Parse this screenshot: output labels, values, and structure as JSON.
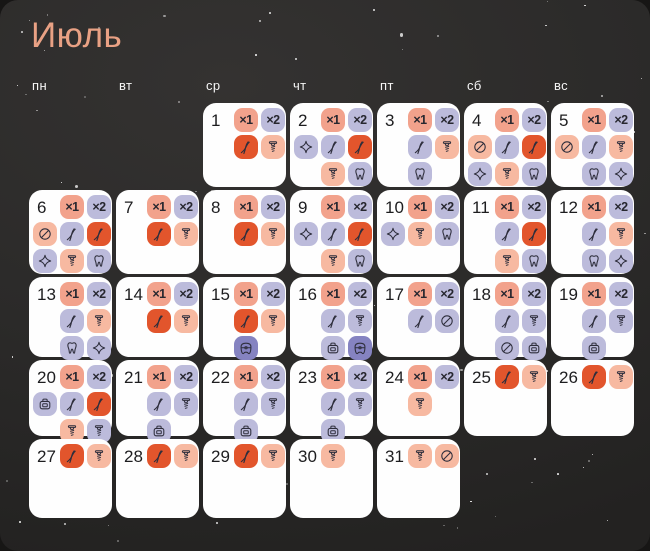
{
  "title": "Июль",
  "weekdays": [
    "пн",
    "вт",
    "ср",
    "чт",
    "пт",
    "сб",
    "вс"
  ],
  "labels": {
    "x1": "×1",
    "x2": "×2"
  },
  "colors": {
    "background": "#2b2a29",
    "card": "#fefefe",
    "title": "#e9a184",
    "weekday": "#f5f5f5",
    "day_number": "#1d1d1f",
    "icon_stroke": "#2e2e3c",
    "salmon": "#f2a28c",
    "peach": "#f7b9a1",
    "lavender": "#bcbbdb",
    "red": "#e2552c",
    "purple": "#8583c1"
  },
  "icon_names": [
    "x1-badge",
    "x2-badge",
    "forceps-icon",
    "implant-icon",
    "tooth-icon",
    "sparkle-icon",
    "prohibited-icon",
    "braces-icon",
    "tray-icon"
  ],
  "days": [
    {
      "day": 1,
      "rows": [
        [
          {
            "i": "x1",
            "c": "salmon"
          },
          {
            "i": "x2",
            "c": "lavender"
          }
        ],
        [
          {
            "i": "forceps",
            "c": "red"
          },
          {
            "i": "implant",
            "c": "peach"
          }
        ]
      ]
    },
    {
      "day": 2,
      "rows": [
        [
          {
            "i": "x1",
            "c": "salmon"
          },
          {
            "i": "x2",
            "c": "lavender"
          }
        ],
        [
          {
            "i": "sparkle",
            "c": "lavender"
          },
          {
            "i": "forceps",
            "c": "lavender"
          },
          {
            "i": "forceps",
            "c": "red"
          }
        ],
        [
          {
            "i": "implant",
            "c": "peach"
          },
          {
            "i": "tooth",
            "c": "lavender"
          }
        ]
      ]
    },
    {
      "day": 3,
      "rows": [
        [
          {
            "i": "x1",
            "c": "salmon"
          },
          {
            "i": "x2",
            "c": "lavender"
          }
        ],
        [
          {
            "i": "forceps",
            "c": "lavender"
          },
          {
            "i": "implant",
            "c": "peach"
          }
        ],
        [
          {
            "i": "tooth",
            "c": "lavender"
          }
        ]
      ]
    },
    {
      "day": 4,
      "rows": [
        [
          {
            "i": "x1",
            "c": "salmon"
          },
          {
            "i": "x2",
            "c": "lavender"
          }
        ],
        [
          {
            "i": "prohibited",
            "c": "peach"
          },
          {
            "i": "forceps",
            "c": "lavender"
          },
          {
            "i": "forceps",
            "c": "red"
          }
        ],
        [
          {
            "i": "sparkle",
            "c": "lavender"
          },
          {
            "i": "implant",
            "c": "peach"
          },
          {
            "i": "tooth",
            "c": "lavender"
          }
        ]
      ]
    },
    {
      "day": 5,
      "rows": [
        [
          {
            "i": "x1",
            "c": "salmon"
          },
          {
            "i": "x2",
            "c": "lavender"
          }
        ],
        [
          {
            "i": "prohibited",
            "c": "peach"
          },
          {
            "i": "forceps",
            "c": "lavender"
          },
          {
            "i": "implant",
            "c": "peach"
          }
        ],
        [
          {
            "i": "tooth",
            "c": "lavender"
          },
          {
            "i": "sparkle",
            "c": "lavender"
          }
        ]
      ]
    },
    {
      "day": 6,
      "rows": [
        [
          {
            "i": "x1",
            "c": "salmon"
          },
          {
            "i": "x2",
            "c": "lavender"
          }
        ],
        [
          {
            "i": "prohibited",
            "c": "peach"
          },
          {
            "i": "forceps",
            "c": "lavender"
          },
          {
            "i": "forceps",
            "c": "red"
          }
        ],
        [
          {
            "i": "sparkle",
            "c": "lavender"
          },
          {
            "i": "implant",
            "c": "peach"
          },
          {
            "i": "tooth",
            "c": "lavender"
          }
        ]
      ]
    },
    {
      "day": 7,
      "rows": [
        [
          {
            "i": "x1",
            "c": "salmon"
          },
          {
            "i": "x2",
            "c": "lavender"
          }
        ],
        [
          {
            "i": "forceps",
            "c": "red"
          },
          {
            "i": "implant",
            "c": "peach"
          }
        ]
      ]
    },
    {
      "day": 8,
      "rows": [
        [
          {
            "i": "x1",
            "c": "salmon"
          },
          {
            "i": "x2",
            "c": "lavender"
          }
        ],
        [
          {
            "i": "forceps",
            "c": "red"
          },
          {
            "i": "implant",
            "c": "peach"
          }
        ]
      ]
    },
    {
      "day": 9,
      "rows": [
        [
          {
            "i": "x1",
            "c": "salmon"
          },
          {
            "i": "x2",
            "c": "lavender"
          }
        ],
        [
          {
            "i": "sparkle",
            "c": "lavender"
          },
          {
            "i": "forceps",
            "c": "lavender"
          },
          {
            "i": "forceps",
            "c": "red"
          }
        ],
        [
          {
            "i": "implant",
            "c": "peach"
          },
          {
            "i": "tooth",
            "c": "lavender"
          }
        ]
      ]
    },
    {
      "day": 10,
      "rows": [
        [
          {
            "i": "x1",
            "c": "salmon"
          },
          {
            "i": "x2",
            "c": "lavender"
          }
        ],
        [
          {
            "i": "sparkle",
            "c": "lavender"
          },
          {
            "i": "implant",
            "c": "peach"
          },
          {
            "i": "tooth",
            "c": "lavender"
          }
        ]
      ]
    },
    {
      "day": 11,
      "rows": [
        [
          {
            "i": "x1",
            "c": "salmon"
          },
          {
            "i": "x2",
            "c": "lavender"
          }
        ],
        [
          {
            "i": "forceps",
            "c": "lavender"
          },
          {
            "i": "forceps",
            "c": "red"
          }
        ],
        [
          {
            "i": "implant",
            "c": "peach"
          },
          {
            "i": "tooth",
            "c": "lavender"
          }
        ]
      ]
    },
    {
      "day": 12,
      "rows": [
        [
          {
            "i": "x1",
            "c": "salmon"
          },
          {
            "i": "x2",
            "c": "lavender"
          }
        ],
        [
          {
            "i": "forceps",
            "c": "lavender"
          },
          {
            "i": "implant",
            "c": "peach"
          }
        ],
        [
          {
            "i": "tooth",
            "c": "lavender"
          },
          {
            "i": "sparkle",
            "c": "lavender"
          }
        ]
      ]
    },
    {
      "day": 13,
      "rows": [
        [
          {
            "i": "x1",
            "c": "salmon"
          },
          {
            "i": "x2",
            "c": "lavender"
          }
        ],
        [
          {
            "i": "forceps",
            "c": "lavender"
          },
          {
            "i": "implant",
            "c": "peach"
          }
        ],
        [
          {
            "i": "tooth",
            "c": "lavender"
          },
          {
            "i": "sparkle",
            "c": "lavender"
          }
        ]
      ]
    },
    {
      "day": 14,
      "rows": [
        [
          {
            "i": "x1",
            "c": "salmon"
          },
          {
            "i": "x2",
            "c": "lavender"
          }
        ],
        [
          {
            "i": "forceps",
            "c": "red"
          },
          {
            "i": "implant",
            "c": "peach"
          }
        ]
      ]
    },
    {
      "day": 15,
      "rows": [
        [
          {
            "i": "x1",
            "c": "salmon"
          },
          {
            "i": "x2",
            "c": "lavender"
          }
        ],
        [
          {
            "i": "forceps",
            "c": "red"
          },
          {
            "i": "implant",
            "c": "peach"
          }
        ],
        [
          {
            "i": "braces",
            "c": "purple"
          }
        ]
      ]
    },
    {
      "day": 16,
      "rows": [
        [
          {
            "i": "x1",
            "c": "salmon"
          },
          {
            "i": "x2",
            "c": "lavender"
          }
        ],
        [
          {
            "i": "forceps",
            "c": "lavender"
          },
          {
            "i": "implant",
            "c": "lavender"
          }
        ],
        [
          {
            "i": "tray",
            "c": "lavender"
          },
          {
            "i": "braces",
            "c": "purple"
          }
        ]
      ]
    },
    {
      "day": 17,
      "rows": [
        [
          {
            "i": "x1",
            "c": "salmon"
          },
          {
            "i": "x2",
            "c": "lavender"
          }
        ],
        [
          {
            "i": "forceps",
            "c": "lavender"
          },
          {
            "i": "prohibited",
            "c": "lavender"
          }
        ]
      ]
    },
    {
      "day": 18,
      "rows": [
        [
          {
            "i": "x1",
            "c": "salmon"
          },
          {
            "i": "x2",
            "c": "lavender"
          }
        ],
        [
          {
            "i": "forceps",
            "c": "lavender"
          },
          {
            "i": "implant",
            "c": "lavender"
          }
        ],
        [
          {
            "i": "prohibited",
            "c": "lavender"
          },
          {
            "i": "tray",
            "c": "lavender"
          }
        ]
      ]
    },
    {
      "day": 19,
      "rows": [
        [
          {
            "i": "x1",
            "c": "salmon"
          },
          {
            "i": "x2",
            "c": "lavender"
          }
        ],
        [
          {
            "i": "forceps",
            "c": "lavender"
          },
          {
            "i": "implant",
            "c": "lavender"
          }
        ],
        [
          {
            "i": "tray",
            "c": "lavender"
          }
        ]
      ]
    },
    {
      "day": 20,
      "rows": [
        [
          {
            "i": "x1",
            "c": "salmon"
          },
          {
            "i": "x2",
            "c": "lavender"
          }
        ],
        [
          {
            "i": "tray",
            "c": "lavender"
          },
          {
            "i": "forceps",
            "c": "lavender"
          },
          {
            "i": "forceps",
            "c": "red"
          }
        ],
        [
          {
            "i": "implant",
            "c": "peach"
          },
          {
            "i": "implant",
            "c": "lavender"
          }
        ]
      ]
    },
    {
      "day": 21,
      "rows": [
        [
          {
            "i": "x1",
            "c": "salmon"
          },
          {
            "i": "x2",
            "c": "lavender"
          }
        ],
        [
          {
            "i": "forceps",
            "c": "lavender"
          },
          {
            "i": "implant",
            "c": "lavender"
          }
        ],
        [
          {
            "i": "tray",
            "c": "lavender"
          }
        ]
      ]
    },
    {
      "day": 22,
      "rows": [
        [
          {
            "i": "x1",
            "c": "salmon"
          },
          {
            "i": "x2",
            "c": "lavender"
          }
        ],
        [
          {
            "i": "forceps",
            "c": "lavender"
          },
          {
            "i": "implant",
            "c": "lavender"
          }
        ],
        [
          {
            "i": "tray",
            "c": "lavender"
          }
        ]
      ]
    },
    {
      "day": 23,
      "rows": [
        [
          {
            "i": "x1",
            "c": "salmon"
          },
          {
            "i": "x2",
            "c": "lavender"
          }
        ],
        [
          {
            "i": "forceps",
            "c": "lavender"
          },
          {
            "i": "implant",
            "c": "lavender"
          }
        ],
        [
          {
            "i": "tray",
            "c": "lavender"
          }
        ]
      ]
    },
    {
      "day": 24,
      "rows": [
        [
          {
            "i": "x1",
            "c": "salmon"
          },
          {
            "i": "x2",
            "c": "lavender"
          }
        ],
        [
          {
            "i": "implant",
            "c": "peach"
          }
        ]
      ]
    },
    {
      "day": 25,
      "rows": [
        [
          {
            "i": "forceps",
            "c": "red"
          },
          {
            "i": "implant",
            "c": "peach"
          }
        ]
      ]
    },
    {
      "day": 26,
      "rows": [
        [
          {
            "i": "forceps",
            "c": "red"
          },
          {
            "i": "implant",
            "c": "peach"
          }
        ]
      ]
    },
    {
      "day": 27,
      "rows": [
        [
          {
            "i": "forceps",
            "c": "red"
          },
          {
            "i": "implant",
            "c": "peach"
          }
        ]
      ]
    },
    {
      "day": 28,
      "rows": [
        [
          {
            "i": "forceps",
            "c": "red"
          },
          {
            "i": "implant",
            "c": "peach"
          }
        ]
      ]
    },
    {
      "day": 29,
      "rows": [
        [
          {
            "i": "forceps",
            "c": "red"
          },
          {
            "i": "implant",
            "c": "peach"
          }
        ]
      ]
    },
    {
      "day": 30,
      "rows": [
        [
          {
            "i": "implant",
            "c": "peach"
          }
        ]
      ]
    },
    {
      "day": 31,
      "rows": [
        [
          {
            "i": "implant",
            "c": "peach"
          },
          {
            "i": "prohibited",
            "c": "peach"
          }
        ]
      ]
    }
  ]
}
